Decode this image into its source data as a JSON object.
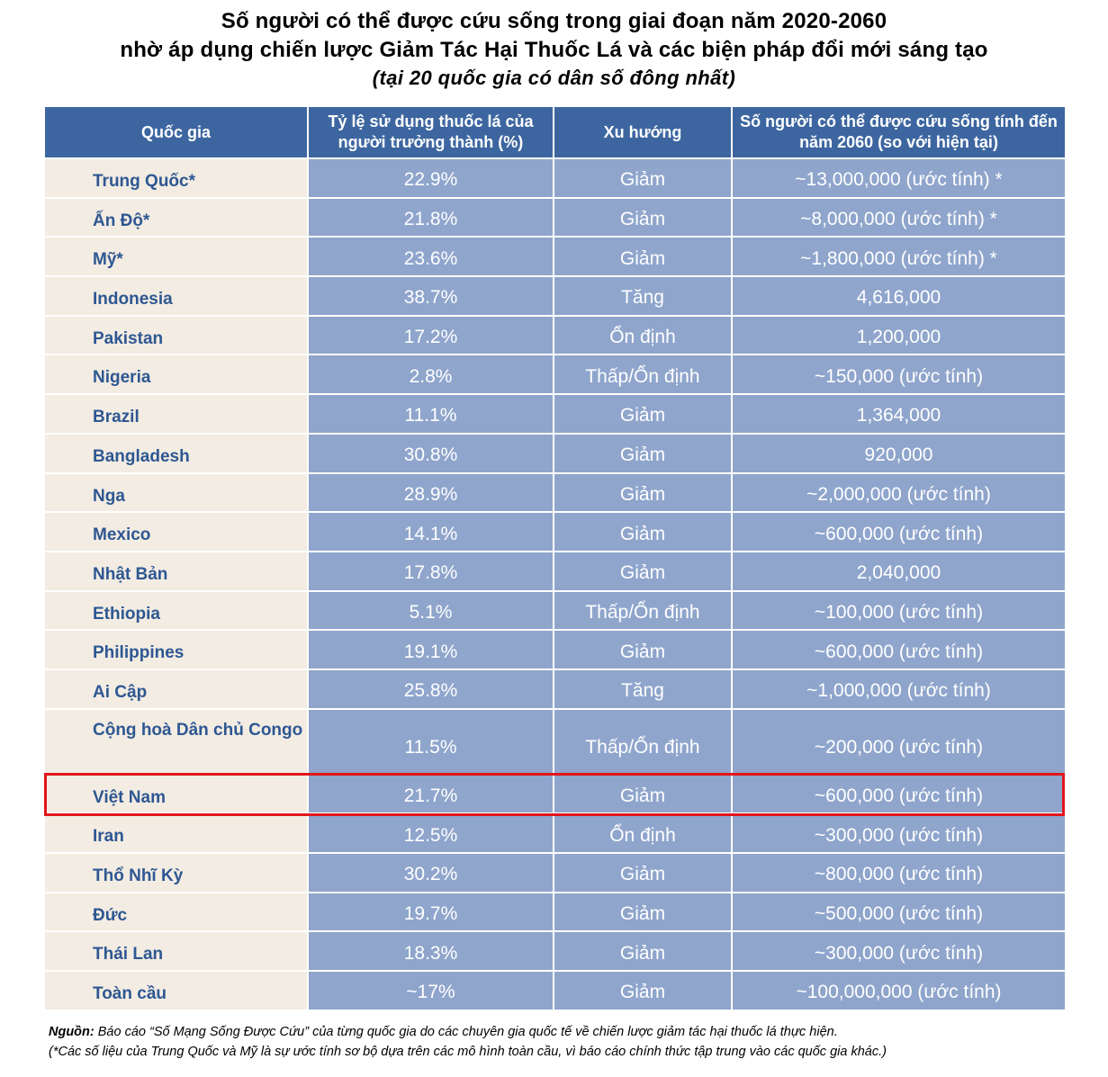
{
  "header": {
    "title_line1": "Số người có thể được cứu sống trong giai đoạn năm 2020-2060",
    "title_line2": "nhờ áp dụng chiến lược Giảm Tác Hại Thuốc Lá và các biện pháp đổi mới sáng tạo",
    "subtitle": "(tại 20 quốc gia có dân số đông nhất)"
  },
  "table": {
    "columns": [
      "Quốc gia",
      "Tỷ lệ sử dụng thuốc lá của người trưởng thành (%)",
      "Xu hướng",
      "Số người có thể được cứu sống tính đến năm 2060 (so với hiện tại)"
    ],
    "rows": [
      {
        "country": "Trung Quốc*",
        "rate": "22.9%",
        "trend": "Giảm",
        "saved": "~13,000,000 (ước tính) *"
      },
      {
        "country": "Ấn Độ*",
        "rate": "21.8%",
        "trend": "Giảm",
        "saved": "~8,000,000 (ước tính) *"
      },
      {
        "country": "Mỹ*",
        "rate": "23.6%",
        "trend": "Giảm",
        "saved": "~1,800,000 (ước tính) *"
      },
      {
        "country": "Indonesia",
        "rate": "38.7%",
        "trend": "Tăng",
        "saved": "4,616,000"
      },
      {
        "country": "Pakistan",
        "rate": "17.2%",
        "trend": "Ổn định",
        "saved": "1,200,000"
      },
      {
        "country": "Nigeria",
        "rate": "2.8%",
        "trend": "Thấp/Ổn định",
        "saved": "~150,000 (ước tính)"
      },
      {
        "country": "Brazil",
        "rate": "11.1%",
        "trend": "Giảm",
        "saved": "1,364,000"
      },
      {
        "country": "Bangladesh",
        "rate": "30.8%",
        "trend": "Giảm",
        "saved": "920,000"
      },
      {
        "country": "Nga",
        "rate": "28.9%",
        "trend": "Giảm",
        "saved": "~2,000,000 (ước tính)"
      },
      {
        "country": "Mexico",
        "rate": "14.1%",
        "trend": "Giảm",
        "saved": "~600,000 (ước tính)"
      },
      {
        "country": "Nhật Bản",
        "rate": "17.8%",
        "trend": "Giảm",
        "saved": "2,040,000"
      },
      {
        "country": "Ethiopia",
        "rate": "5.1%",
        "trend": "Thấp/Ổn định",
        "saved": "~100,000 (ước tính)"
      },
      {
        "country": "Philippines",
        "rate": "19.1%",
        "trend": "Giảm",
        "saved": "~600,000 (ước tính)"
      },
      {
        "country": "Ai Cập",
        "rate": "25.8%",
        "trend": "Tăng",
        "saved": "~1,000,000 (ước tính)"
      },
      {
        "country": "Cộng hoà Dân chủ Congo",
        "rate": "11.5%",
        "trend": "Thấp/Ổn định",
        "saved": "~200,000 (ước tính)"
      },
      {
        "country": "Việt Nam",
        "rate": "21.7%",
        "trend": "Giảm",
        "saved": "~600,000 (ước tính)"
      },
      {
        "country": "Iran",
        "rate": "12.5%",
        "trend": "Ổn định",
        "saved": "~300,000 (ước tính)"
      },
      {
        "country": "Thổ Nhĩ Kỳ",
        "rate": "30.2%",
        "trend": "Giảm",
        "saved": "~800,000 (ước tính)"
      },
      {
        "country": "Đức",
        "rate": "19.7%",
        "trend": "Giảm",
        "saved": "~500,000 (ước tính)"
      },
      {
        "country": "Thái Lan",
        "rate": "18.3%",
        "trend": "Giảm",
        "saved": "~300,000 (ước tính)"
      },
      {
        "country": "Toàn cầu",
        "rate": "~17%",
        "trend": "Giảm",
        "saved": "~100,000,000 (ước tính)"
      }
    ]
  },
  "footer": {
    "source_label": "Nguồn:",
    "source_text": " Báo cáo “Số Mạng Sống Được Cứu” của từng quốc gia do các chuyên gia quốc tế về chiến lược giảm tác hại thuốc lá thực hiện.",
    "note": "(*Các số liệu của Trung Quốc và Mỹ là sự ước tính sơ bộ dựa trên các mô hình toàn cầu, vì báo cáo chính thức tập trung vào các quốc gia khác.)"
  },
  "colors": {
    "header_bg": "#3d66a0",
    "country_bg": "#f2ece3",
    "country_text": "#2e5792",
    "value_bg": "#8fa5cc",
    "highlight_border": "#e0161b"
  }
}
